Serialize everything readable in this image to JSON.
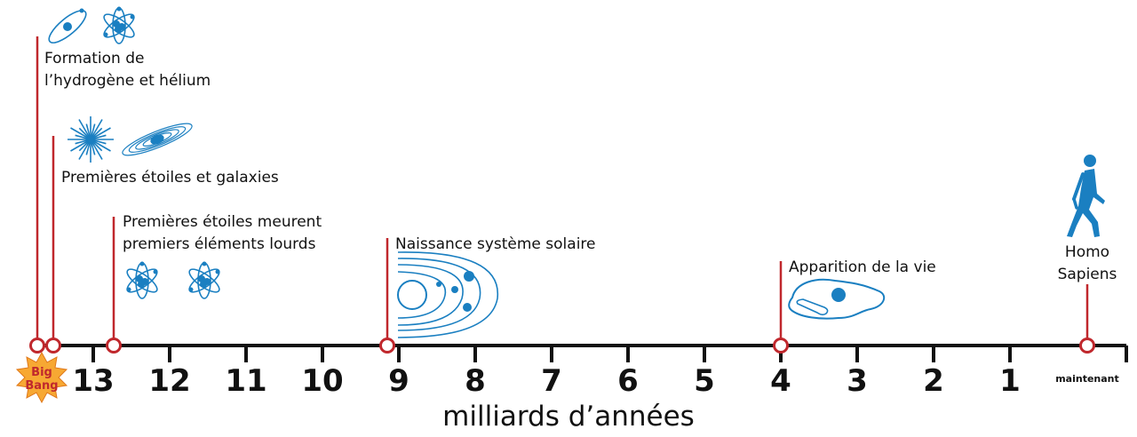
{
  "axis": {
    "title": "milliards d’années",
    "now_label": "maintenant",
    "ticks": [
      "13",
      "12",
      "11",
      "10",
      "9",
      "8",
      "7",
      "6",
      "5",
      "4",
      "3",
      "2",
      "1"
    ]
  },
  "big_bang": {
    "line1": "Big",
    "line2": "Bang"
  },
  "events": [
    {
      "lines": [
        "Formation de",
        "l’hydrogène et hélium"
      ],
      "icon": "atom-icon"
    },
    {
      "lines": [
        "Premières étoiles et galaxies"
      ],
      "icon": "star-galaxy-icon"
    },
    {
      "lines": [
        "Premières étoiles meurent",
        "premiers éléments lourds"
      ],
      "icon": "heavy-atom-icon"
    },
    {
      "lines": [
        "Naissance système solaire"
      ],
      "icon": "solar-system-icon"
    },
    {
      "lines": [
        "Apparition de la vie"
      ],
      "icon": "cell-icon"
    },
    {
      "lines": [
        "Homo",
        "Sapiens"
      ],
      "icon": "human-icon"
    }
  ],
  "colors": {
    "marker": "#c0282d",
    "icon": "#1a7fc1",
    "axis": "#111111",
    "big_bang_fill": "#f7a833"
  }
}
